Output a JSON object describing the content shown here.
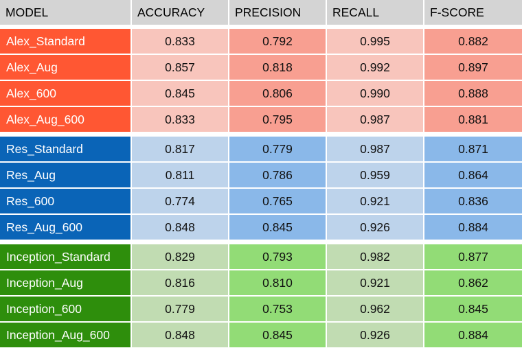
{
  "columns": [
    "MODEL",
    "ACCURACY",
    "PRECISION",
    "RECALL",
    "F-SCORE"
  ],
  "groups": [
    {
      "colors": {
        "name": "#ff5733",
        "light": "#f8c5bc",
        "strong": "#f89f91"
      },
      "rows": [
        [
          "Alex_Standard",
          "0.833",
          "0.792",
          "0.995",
          "0.882"
        ],
        [
          "Alex_Aug",
          "0.857",
          "0.818",
          "0.992",
          "0.897"
        ],
        [
          "Alex_600",
          "0.845",
          "0.806",
          "0.990",
          "0.888"
        ],
        [
          "Alex_Aug_600",
          "0.833",
          "0.795",
          "0.987",
          "0.881"
        ]
      ]
    },
    {
      "colors": {
        "name": "#0a64b7",
        "light": "#bdd3eb",
        "strong": "#8ab8e9"
      },
      "rows": [
        [
          "Res_Standard",
          "0.817",
          "0.779",
          "0.987",
          "0.871"
        ],
        [
          "Res_Aug",
          "0.811",
          "0.786",
          "0.959",
          "0.864"
        ],
        [
          "Res_600",
          "0.774",
          "0.765",
          "0.921",
          "0.836"
        ],
        [
          "Res_Aug_600",
          "0.848",
          "0.845",
          "0.926",
          "0.884"
        ]
      ]
    },
    {
      "colors": {
        "name": "#2e8e0c",
        "light": "#c1dcb2",
        "strong": "#92dc76"
      },
      "rows": [
        [
          "Inception_Standard",
          "0.829",
          "0.793",
          "0.982",
          "0.877"
        ],
        [
          "Inception_Aug",
          "0.816",
          "0.810",
          "0.921",
          "0.862"
        ],
        [
          "Inception_600",
          "0.779",
          "0.753",
          "0.962",
          "0.845"
        ],
        [
          "Inception_Aug_600",
          "0.848",
          "0.845",
          "0.926",
          "0.884"
        ]
      ]
    }
  ]
}
